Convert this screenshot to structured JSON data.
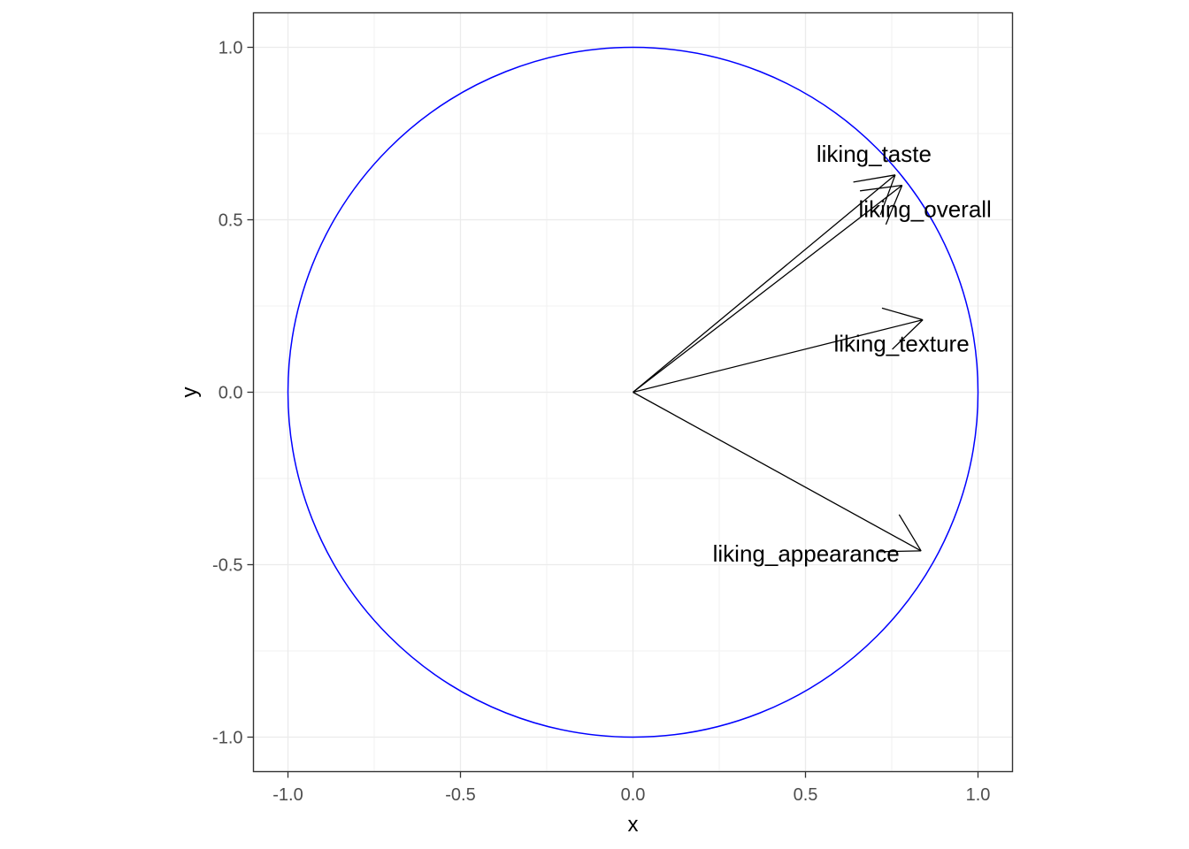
{
  "chart_data": {
    "type": "scatter",
    "xlabel": "x",
    "ylabel": "y",
    "xlim": [
      -1.1,
      1.1
    ],
    "ylim": [
      -1.1,
      1.1
    ],
    "x_ticks": [
      -1.0,
      -0.5,
      0.0,
      0.5,
      1.0
    ],
    "y_ticks": [
      -1.0,
      -0.5,
      0.0,
      0.5,
      1.0
    ],
    "x_tick_labels": [
      "-1.0",
      "-0.5",
      "0.0",
      "0.5",
      "1.0"
    ],
    "y_tick_labels": [
      "-1.0",
      "-0.5",
      "0.0",
      "0.5",
      "1.0"
    ],
    "grid": true,
    "circle": {
      "center": [
        0,
        0
      ],
      "radius": 1.0,
      "color": "#0000ff"
    },
    "arrow_color": "#000000",
    "vectors": [
      {
        "label": "liking_taste",
        "x": 0.76,
        "y": 0.63
      },
      {
        "label": "liking_overall",
        "x": 0.78,
        "y": 0.6
      },
      {
        "label": "liking_texture",
        "x": 0.84,
        "y": 0.21
      },
      {
        "label": "liking_appearance",
        "x": 0.835,
        "y": -0.46
      }
    ]
  }
}
